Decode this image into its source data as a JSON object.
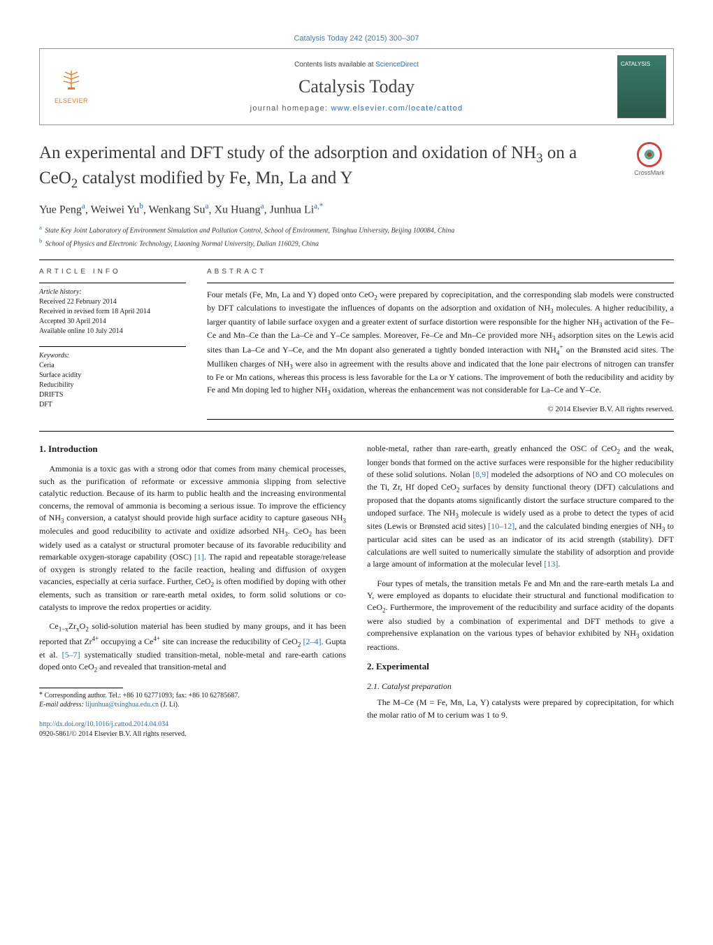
{
  "journal_ref": "Catalysis Today 242 (2015) 300–307",
  "header": {
    "publisher_mark": "ELSEVIER",
    "contents_prefix": "Contents lists available at ",
    "contents_link": "ScienceDirect",
    "journal_title": "Catalysis Today",
    "homepage_prefix": "journal homepage: ",
    "homepage_link": "www.elsevier.com/locate/cattod"
  },
  "crossmark_label": "CrossMark",
  "title_html": "An experimental and DFT study of the adsorption and oxidation of NH<sub>3</sub> on a CeO<sub>2</sub> catalyst modified by Fe, Mn, La and Y",
  "authors_html": "Yue Peng<sup class=\"aff-sup\">a</sup>, Weiwei Yu<sup class=\"aff-sup\">b</sup>, Wenkang Su<sup class=\"aff-sup\">a</sup>, Xu Huang<sup class=\"aff-sup\">a</sup>, Junhua Li<sup class=\"aff-sup\">a,*</sup>",
  "affiliations": [
    {
      "sup": "a",
      "text": "State Key Joint Laboratory of Environment Simulation and Pollution Control, School of Environment, Tsinghua University, Beijing 100084, China"
    },
    {
      "sup": "b",
      "text": "School of Physics and Electronic Technology, Liaoning Normal University, Dalian 116029, China"
    }
  ],
  "info": {
    "article_info_heading": "ARTICLE INFO",
    "history_head": "Article history:",
    "history": [
      "Received 22 February 2014",
      "Received in revised form 18 April 2014",
      "Accepted 30 April 2014",
      "Available online 10 July 2014"
    ],
    "keywords_head": "Keywords:",
    "keywords": [
      "Ceria",
      "Surface acidity",
      "Reducibility",
      "DRIFTS",
      "DFT"
    ]
  },
  "abstract": {
    "heading": "ABSTRACT",
    "text_html": "Four metals (Fe, Mn, La and Y) doped onto CeO<sub>2</sub> were prepared by coprecipitation, and the corresponding slab models were constructed by DFT calculations to investigate the influences of dopants on the adsorption and oxidation of NH<sub>3</sub> molecules. A higher reducibility, a larger quantity of labile surface oxygen and a greater extent of surface distortion were responsible for the higher NH<sub>3</sub> activation of the Fe–Ce and Mn–Ce than the La–Ce and Y–Ce samples. Moreover, Fe–Ce and Mn–Ce provided more NH<sub>3</sub> adsorption sites on the Lewis acid sites than La–Ce and Y–Ce, and the Mn dopant also generated a tightly bonded interaction with NH<sub>4</sub><sup>+</sup> on the Brønsted acid sites. The Mulliken charges of NH<sub>3</sub> were also in agreement with the results above and indicated that the lone pair electrons of nitrogen can transfer to Fe or Mn cations, whereas this process is less favorable for the La or Y cations. The improvement of both the reducibility and acidity by Fe and Mn doping led to higher NH<sub>3</sub> oxidation, whereas the enhancement was not considerable for La–Ce and Y–Ce.",
    "copyright": "© 2014 Elsevier B.V. All rights reserved."
  },
  "body": {
    "intro_heading": "1.  Introduction",
    "intro_p1_html": "Ammonia is a toxic gas with a strong odor that comes from many chemical processes, such as the purification of reformate or excessive ammonia slipping from selective catalytic reduction. Because of its harm to public health and the increasing environmental concerns, the removal of ammonia is becoming a serious issue. To improve the efficiency of NH<sub>3</sub> conversion, a catalyst should provide high surface acidity to capture gaseous NH<sub>3</sub> molecules and good reducibility to activate and oxidize adsorbed NH<sub>3</sub>. CeO<sub>2</sub> has been widely used as a catalyst or structural promoter because of its favorable reducibility and remarkable oxygen-storage capability (OSC) <span class=\"ref-link\">[1]</span>. The rapid and repeatable storage/release of oxygen is strongly related to the facile reaction, healing and diffusion of oxygen vacancies, especially at ceria surface. Further, CeO<sub>2</sub> is often modified by doping with other elements, such as transition or rare-earth metal oxides, to form solid solutions or co-catalysts to improve the redox properties or acidity.",
    "intro_p2_html": "Ce<sub>1−x</sub>Zr<sub>x</sub>O<sub>2</sub> solid-solution material has been studied by many groups, and it has been reported that Zr<sup>4+</sup> occupying a Ce<sup>4+</sup> site can increase the reducibility of CeO<sub>2</sub> <span class=\"ref-link\">[2–4]</span>. Gupta et al. <span class=\"ref-link\">[5–7]</span> systematically studied transition-metal, noble-metal and rare-earth cations doped onto CeO<sub>2</sub> and revealed that transition-metal and",
    "intro_p3_html": "noble-metal, rather than rare-earth, greatly enhanced the OSC of CeO<sub>2</sub> and the weak, longer bonds that formed on the active surfaces were responsible for the higher reducibility of these solid solutions. Nolan <span class=\"ref-link\">[8,9]</span> modeled the adsorptions of NO and CO molecules on the Ti, Zr, Hf doped CeO<sub>2</sub> surfaces by density functional theory (DFT) calculations and proposed that the dopants atoms significantly distort the surface structure compared to the undoped surface. The NH<sub>3</sub> molecule is widely used as a probe to detect the types of acid sites (Lewis or Brønsted acid sites) <span class=\"ref-link\">[10–12]</span>, and the calculated binding energies of NH<sub>3</sub> to particular acid sites can be used as an indicator of its acid strength (stability). DFT calculations are well suited to numerically simulate the stability of adsorption and provide a large amount of information at the molecular level <span class=\"ref-link\">[13]</span>.",
    "intro_p4_html": "Four types of metals, the transition metals Fe and Mn and the rare-earth metals La and Y, were employed as dopants to elucidate their structural and functional modification to CeO<sub>2</sub>. Furthermore, the improvement of the reducibility and surface acidity of the dopants were also studied by a combination of experimental and DFT methods to give a comprehensive explanation on the various types of behavior exhibited by NH<sub>3</sub> oxidation reactions.",
    "exp_heading": "2.  Experimental",
    "exp_sub": "2.1.  Catalyst preparation",
    "exp_p1_html": "The M–Ce (M = Fe, Mn, La, Y) catalysts were prepared by coprecipitation, for which the molar ratio of M to cerium was 1 to 9."
  },
  "footnote": {
    "line1": "Corresponding author. Tel.: +86 10 62771093; fax: +86 10 62785687.",
    "email_label": "E-mail address: ",
    "email": "lijunhua@tsinghua.edu.cn",
    "email_who": " (J. Li)."
  },
  "doi": {
    "url": "http://dx.doi.org/10.1016/j.cattod.2014.04.034",
    "issn_line": "0920-5861/© 2014 Elsevier B.V. All rights reserved."
  }
}
